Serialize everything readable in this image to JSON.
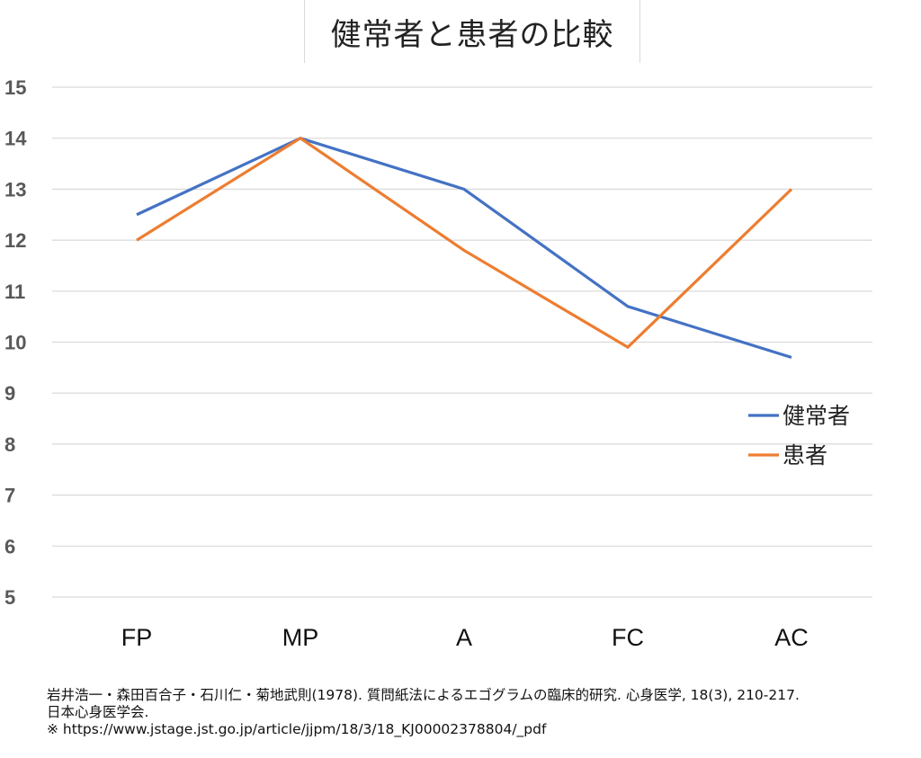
{
  "chart_data": {
    "type": "line",
    "title": "健常者と患者の比較",
    "categories": [
      "FP",
      "MP",
      "A",
      "FC",
      "AC"
    ],
    "ylim": [
      5,
      15
    ],
    "yticks": [
      5,
      6,
      7,
      8,
      9,
      10,
      11,
      12,
      13,
      14,
      15
    ],
    "grid": true,
    "legend_position": "right",
    "series": [
      {
        "name": "健常者",
        "color": "#4472C4",
        "values": [
          12.5,
          14,
          13,
          10.7,
          9.7
        ]
      },
      {
        "name": "患者",
        "color": "#ED7D31",
        "values": [
          12,
          14,
          11.8,
          9.9,
          13
        ]
      }
    ]
  },
  "citation": {
    "line1": "岩井浩一・森田百合子・石川仁・菊地武則(1978). 質問紙法によるエゴグラムの臨床的研究. 心身医学, 18(3), 210-217.",
    "line2": "日本心身医学会.",
    "line3": "※ https://www.jstage.jst.go.jp/article/jjpm/18/3/18_KJ00002378804/_pdf"
  }
}
